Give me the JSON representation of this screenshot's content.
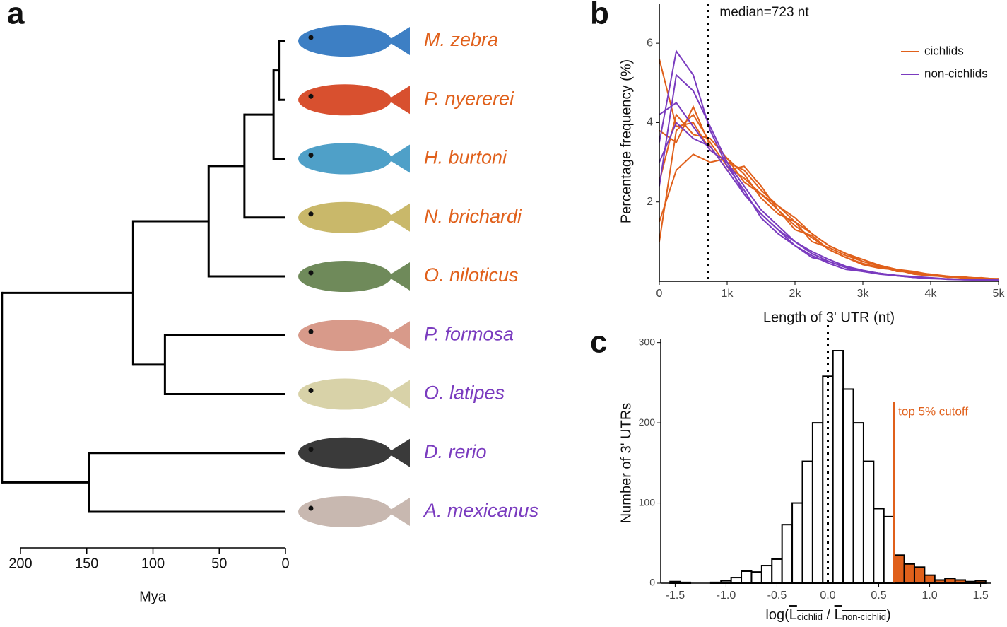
{
  "chart_data": [
    {
      "type": "tree",
      "panel": "a",
      "xlabel": "Mya",
      "xlim": [
        200,
        0
      ],
      "xticks": [
        200,
        150,
        100,
        50,
        0
      ],
      "tree": {
        "age": 214,
        "children": [
          {
            "age": 115,
            "children": [
              {
                "age": 58,
                "children": [
                  {
                    "age": 31,
                    "children": [
                      {
                        "age": 9,
                        "children": [
                          {
                            "age": 5,
                            "children": [
                              {
                                "name": "M. zebra",
                                "color": "#e0601b"
                              },
                              {
                                "name": "P. nyererei",
                                "color": "#e0601b"
                              }
                            ]
                          },
                          {
                            "name": "H. burtoni",
                            "color": "#e0601b"
                          }
                        ]
                      },
                      {
                        "name": "N. brichardi",
                        "color": "#e0601b"
                      }
                    ]
                  },
                  {
                    "name": "O. niloticus",
                    "color": "#e0601b"
                  }
                ]
              },
              {
                "age": 91,
                "children": [
                  {
                    "name": "P. formosa",
                    "color": "#7a3bbf"
                  },
                  {
                    "name": "O. latipes",
                    "color": "#7a3bbf"
                  }
                ]
              }
            ]
          },
          {
            "age": 148,
            "children": [
              {
                "name": "D. rerio",
                "color": "#7a3bbf"
              },
              {
                "name": "A. mexicanus",
                "color": "#7a3bbf"
              }
            ]
          }
        ]
      }
    },
    {
      "type": "line",
      "panel": "b",
      "ylabel": "Percentage frequency (%)",
      "xlabel": "Length of 3' UTR (nt)",
      "xlim": [
        0,
        5000
      ],
      "ylim": [
        0,
        7
      ],
      "xticks": [
        0,
        {
          "value": 1000,
          "label": "1k"
        },
        {
          "value": 2000,
          "label": "2k"
        },
        {
          "value": 3000,
          "label": "3k"
        },
        {
          "value": 4000,
          "label": "4k"
        },
        {
          "value": 5000,
          "label": "5k"
        }
      ],
      "yticks": [
        2,
        4,
        6
      ],
      "legend": "top-right",
      "annotations": [
        {
          "x": 723,
          "label": "median=723 nt"
        }
      ],
      "x": [
        0,
        250,
        500,
        750,
        1000,
        1250,
        1500,
        1750,
        2000,
        2250,
        2500,
        2750,
        3000,
        3250,
        3500,
        3750,
        4000,
        4250,
        4500,
        4750,
        5000
      ],
      "series": [
        {
          "name": "cichlids",
          "color": "#e0601b",
          "lines": [
            [
              1.0,
              3.8,
              4.2,
              3.5,
              2.9,
              2.6,
              2.2,
              1.8,
              1.4,
              1.1,
              0.8,
              0.6,
              0.45,
              0.35,
              0.28,
              0.2,
              0.15,
              0.12,
              0.1,
              0.08,
              0.06
            ],
            [
              5.6,
              3.9,
              4.0,
              3.3,
              3.0,
              2.8,
              2.3,
              1.9,
              1.5,
              1.2,
              0.9,
              0.7,
              0.5,
              0.4,
              0.3,
              0.22,
              0.18,
              0.13,
              0.1,
              0.07,
              0.05
            ],
            [
              2.5,
              4.2,
              3.7,
              3.6,
              3.1,
              2.7,
              2.1,
              1.7,
              1.5,
              1.0,
              0.85,
              0.65,
              0.5,
              0.38,
              0.25,
              0.24,
              0.16,
              0.1,
              0.11,
              0.06,
              0.07
            ],
            [
              3.8,
              3.5,
              4.4,
              3.4,
              2.8,
              2.9,
              2.4,
              1.8,
              1.3,
              1.15,
              0.8,
              0.6,
              0.42,
              0.33,
              0.29,
              0.18,
              0.14,
              0.12,
              0.08,
              0.09,
              0.05
            ],
            [
              1.5,
              2.8,
              3.2,
              3.0,
              3.1,
              2.5,
              2.2,
              1.9,
              1.6,
              1.2,
              0.9,
              0.7,
              0.55,
              0.4,
              0.3,
              0.25,
              0.17,
              0.13,
              0.1,
              0.08,
              0.06
            ]
          ]
        },
        {
          "name": "non-cichlids",
          "color": "#7a3bbf",
          "lines": [
            [
              3.5,
              5.8,
              5.2,
              3.8,
              2.9,
              2.3,
              1.6,
              1.2,
              0.9,
              0.65,
              0.45,
              0.3,
              0.25,
              0.2,
              0.15,
              0.1,
              0.08,
              0.06,
              0.05,
              0.04,
              0.03
            ],
            [
              2.4,
              5.2,
              4.8,
              3.9,
              3.0,
              2.2,
              1.7,
              1.3,
              0.9,
              0.6,
              0.5,
              0.35,
              0.25,
              0.18,
              0.14,
              0.1,
              0.08,
              0.05,
              0.04,
              0.04,
              0.03
            ],
            [
              4.2,
              4.5,
              3.9,
              3.3,
              3.0,
              2.4,
              1.8,
              1.4,
              1.0,
              0.75,
              0.55,
              0.38,
              0.28,
              0.2,
              0.15,
              0.12,
              0.09,
              0.06,
              0.05,
              0.03,
              0.03
            ],
            [
              3.0,
              4.0,
              3.6,
              3.4,
              2.8,
              2.2,
              1.7,
              1.3,
              1.0,
              0.7,
              0.5,
              0.35,
              0.26,
              0.2,
              0.14,
              0.1,
              0.07,
              0.06,
              0.04,
              0.03,
              0.02
            ]
          ]
        }
      ]
    },
    {
      "type": "histogram",
      "panel": "c",
      "ylabel": "Number of 3' UTRs",
      "xlabel": [
        "log(",
        "L",
        "cichlid",
        " / ",
        "L",
        "non-cichlid",
        ")"
      ],
      "xlim": [
        -1.6,
        1.6
      ],
      "ylim": [
        0,
        305
      ],
      "xticks": [
        -1.5,
        {
          "value": -1,
          "label": "-1.0"
        },
        -0.5,
        {
          "value": 0,
          "label": "0.0"
        },
        0.5,
        {
          "value": 1,
          "label": "1.0"
        },
        1.5
      ],
      "yticks": [
        0,
        100,
        200,
        300
      ],
      "bins": [
        -1.55,
        -1.45,
        -1.35,
        -1.25,
        -1.15,
        -1.05,
        -0.95,
        -0.85,
        -0.75,
        -0.65,
        -0.55,
        -0.45,
        -0.35,
        -0.25,
        -0.15,
        -0.05,
        0.05,
        0.15,
        0.25,
        0.35,
        0.45,
        0.55,
        0.65,
        0.75,
        0.85,
        0.95,
        1.05,
        1.15,
        1.25,
        1.35,
        1.45,
        1.55
      ],
      "counts": [
        2,
        1,
        0,
        0,
        1,
        3,
        7,
        15,
        14,
        22,
        30,
        73,
        100,
        152,
        200,
        258,
        290,
        242,
        200,
        152,
        93,
        83,
        35,
        24,
        20,
        10,
        4,
        6,
        4,
        2,
        3
      ],
      "color": "#ffffff",
      "highlight_color": "#e0601b",
      "vline": 0,
      "cutoff": {
        "x": 0.65,
        "label": "top 5% cutoff",
        "color": "#e0601b"
      }
    }
  ]
}
